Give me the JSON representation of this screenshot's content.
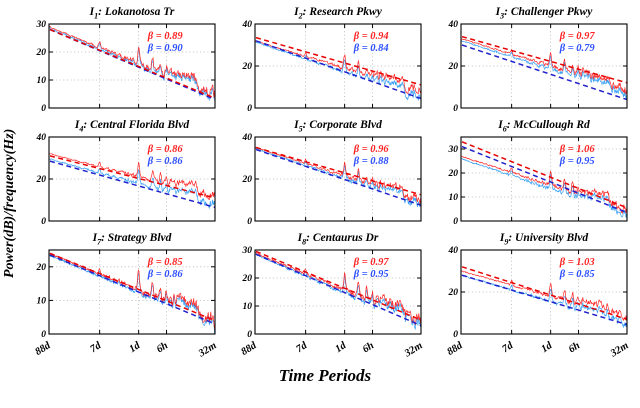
{
  "chart_data": {
    "type": "line",
    "xlabel": "Time Periods",
    "ylabel": "Power(dB)/frequency(Hz)",
    "x_axis": {
      "scale": "log-frequency shown as time period",
      "tick_labels": [
        "88d",
        "7d",
        "1d",
        "6h",
        "32m"
      ],
      "tick_positions": [
        0,
        0.305,
        0.54,
        0.708,
        1
      ]
    },
    "colors": {
      "line_red": "#ff2a2a",
      "line_blue": "#37a0f5",
      "trend_red": "#e60000",
      "trend_blue": "#2020cc",
      "beta_red": "#ff2222",
      "beta_blue": "#2b4fff"
    },
    "plots": [
      {
        "id": "I1",
        "title_prefix": "I",
        "title_sub": "1",
        "title_rest": ": Lokanotosa Tr",
        "beta_red": "0.89",
        "beta_blue": "0.90",
        "beta_red_text": "β = 0.89",
        "beta_blue_text": "β = 0.90",
        "ylim": [
          0,
          30
        ],
        "yticks": [
          0,
          10,
          20,
          30
        ],
        "series": {
          "red_psd": {
            "start_db": 29,
            "end_db": 5
          },
          "blue_psd": {
            "start_db": 28.5,
            "end_db": 4
          },
          "red_fit": {
            "start_db": 28,
            "end_db": 3.5
          },
          "blue_fit": {
            "start_db": 28,
            "end_db": 3
          }
        }
      },
      {
        "id": "I2",
        "title_prefix": "I",
        "title_sub": "2",
        "title_rest": ": Research Pkwy",
        "beta_red": "0.94",
        "beta_blue": "0.84",
        "beta_red_text": "β = 0.94",
        "beta_blue_text": "β = 0.84",
        "ylim": [
          0,
          40
        ],
        "yticks": [
          0,
          20,
          40
        ],
        "series": {
          "red_psd": {
            "start_db": 32,
            "end_db": 8
          },
          "blue_psd": {
            "start_db": 31.5,
            "end_db": 5
          },
          "red_fit": {
            "start_db": 33.5,
            "end_db": 11
          },
          "blue_fit": {
            "start_db": 32,
            "end_db": 4.5
          }
        }
      },
      {
        "id": "I3",
        "title_prefix": "I",
        "title_sub": "3",
        "title_rest": ": Challenger Pkwy",
        "beta_red": "0.97",
        "beta_blue": "0.79",
        "beta_red_text": "β = 0.97",
        "beta_blue_text": "β = 0.79",
        "ylim": [
          0,
          40
        ],
        "yticks": [
          0,
          20,
          40
        ],
        "series": {
          "red_psd": {
            "start_db": 33,
            "end_db": 9
          },
          "blue_psd": {
            "start_db": 32,
            "end_db": 7
          },
          "red_fit": {
            "start_db": 34,
            "end_db": 12
          },
          "blue_fit": {
            "start_db": 30,
            "end_db": 4
          }
        }
      },
      {
        "id": "I4",
        "title_prefix": "I",
        "title_sub": "4",
        "title_rest": ": Central Florida Blvd",
        "beta_red": "0.86",
        "beta_blue": "0.86",
        "beta_red_text": "β = 0.86",
        "beta_blue_text": "β = 0.86",
        "ylim": [
          0,
          40
        ],
        "yticks": [
          0,
          20,
          40
        ],
        "series": {
          "red_psd": {
            "start_db": 32,
            "end_db": 12
          },
          "blue_psd": {
            "start_db": 29.5,
            "end_db": 8
          },
          "red_fit": {
            "start_db": 31,
            "end_db": 11
          },
          "blue_fit": {
            "start_db": 28.5,
            "end_db": 6.5
          }
        }
      },
      {
        "id": "I5",
        "title_prefix": "I",
        "title_sub": "5",
        "title_rest": ": Corporate Blvd",
        "beta_red": "0.96",
        "beta_blue": "0.88",
        "beta_red_text": "β = 0.96",
        "beta_blue_text": "β = 0.88",
        "ylim": [
          0,
          40
        ],
        "yticks": [
          0,
          20,
          40
        ],
        "series": {
          "red_psd": {
            "start_db": 35,
            "end_db": 10
          },
          "blue_psd": {
            "start_db": 34.5,
            "end_db": 8
          },
          "red_fit": {
            "start_db": 35,
            "end_db": 12.5
          },
          "blue_fit": {
            "start_db": 34,
            "end_db": 7.5
          }
        }
      },
      {
        "id": "I6",
        "title_prefix": "I",
        "title_sub": "6",
        "title_rest": ": McCullough Rd",
        "beta_red": "1.06",
        "beta_blue": "0.95",
        "beta_red_text": "β = 1.06",
        "beta_blue_text": "β = 0.95",
        "ylim": [
          0,
          35
        ],
        "yticks": [
          0,
          10,
          20,
          30
        ],
        "series": {
          "red_psd": {
            "start_db": 27,
            "end_db": 5
          },
          "blue_psd": {
            "start_db": 26,
            "end_db": 3
          },
          "red_fit": {
            "start_db": 33,
            "end_db": 5.5
          },
          "blue_fit": {
            "start_db": 31,
            "end_db": 3.5
          }
        }
      },
      {
        "id": "I7",
        "title_prefix": "I",
        "title_sub": "7",
        "title_rest": ": Strategy Blvd",
        "beta_red": "0.85",
        "beta_blue": "0.86",
        "beta_red_text": "β = 0.85",
        "beta_blue_text": "β = 0.86",
        "ylim": [
          0,
          25
        ],
        "yticks": [
          0,
          10,
          20
        ],
        "series": {
          "red_psd": {
            "start_db": 24,
            "end_db": 4
          },
          "blue_psd": {
            "start_db": 23.5,
            "end_db": 3
          },
          "red_fit": {
            "start_db": 24,
            "end_db": 4
          },
          "blue_fit": {
            "start_db": 23.5,
            "end_db": 3
          }
        }
      },
      {
        "id": "I8",
        "title_prefix": "I",
        "title_sub": "8",
        "title_rest": ": Centaurus Dr",
        "beta_red": "0.97",
        "beta_blue": "0.95",
        "beta_red_text": "β = 0.97",
        "beta_blue_text": "β = 0.95",
        "ylim": [
          0,
          30
        ],
        "yticks": [
          0,
          10,
          20,
          30
        ],
        "series": {
          "red_psd": {
            "start_db": 29,
            "end_db": 4.5
          },
          "blue_psd": {
            "start_db": 28.5,
            "end_db": 3
          },
          "red_fit": {
            "start_db": 29.5,
            "end_db": 5
          },
          "blue_fit": {
            "start_db": 28.5,
            "end_db": 3
          }
        }
      },
      {
        "id": "I9",
        "title_prefix": "I",
        "title_sub": "9",
        "title_rest": ": University Blvd",
        "beta_red": "1.03",
        "beta_blue": "0.85",
        "beta_red_text": "β = 1.03",
        "beta_blue_text": "β = 0.85",
        "ylim": [
          0,
          40
        ],
        "yticks": [
          0,
          20,
          40
        ],
        "series": {
          "red_psd": {
            "start_db": 30,
            "end_db": 8
          },
          "blue_psd": {
            "start_db": 28,
            "end_db": 5
          },
          "red_fit": {
            "start_db": 32,
            "end_db": 7
          },
          "blue_fit": {
            "start_db": 28,
            "end_db": 4.5
          }
        }
      }
    ]
  }
}
